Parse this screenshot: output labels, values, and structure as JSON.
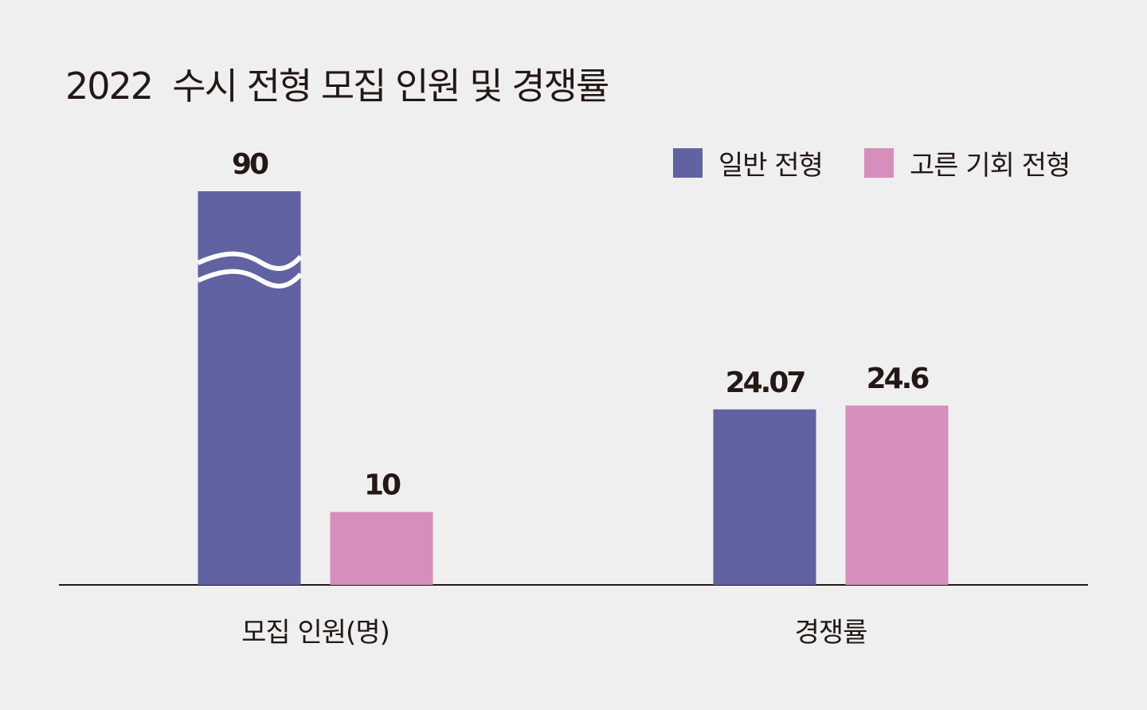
{
  "chart_data": {
    "type": "bar",
    "title": "2022  수시 전형 모집 인원 및 경쟁률",
    "categories": [
      "모집 인원(명)",
      "경쟁률"
    ],
    "series": [
      {
        "name": "일반 전형",
        "color": "#6062a1",
        "values": [
          90,
          24.07
        ],
        "labels": [
          "90",
          "24.07"
        ]
      },
      {
        "name": "고른 기회 전형",
        "color": "#d58fba",
        "values": [
          10,
          24.6
        ],
        "labels": [
          "10",
          "24.6"
        ]
      }
    ],
    "axis_break": {
      "series": 0,
      "category": 0
    },
    "legend": "top-right",
    "grid": false
  }
}
